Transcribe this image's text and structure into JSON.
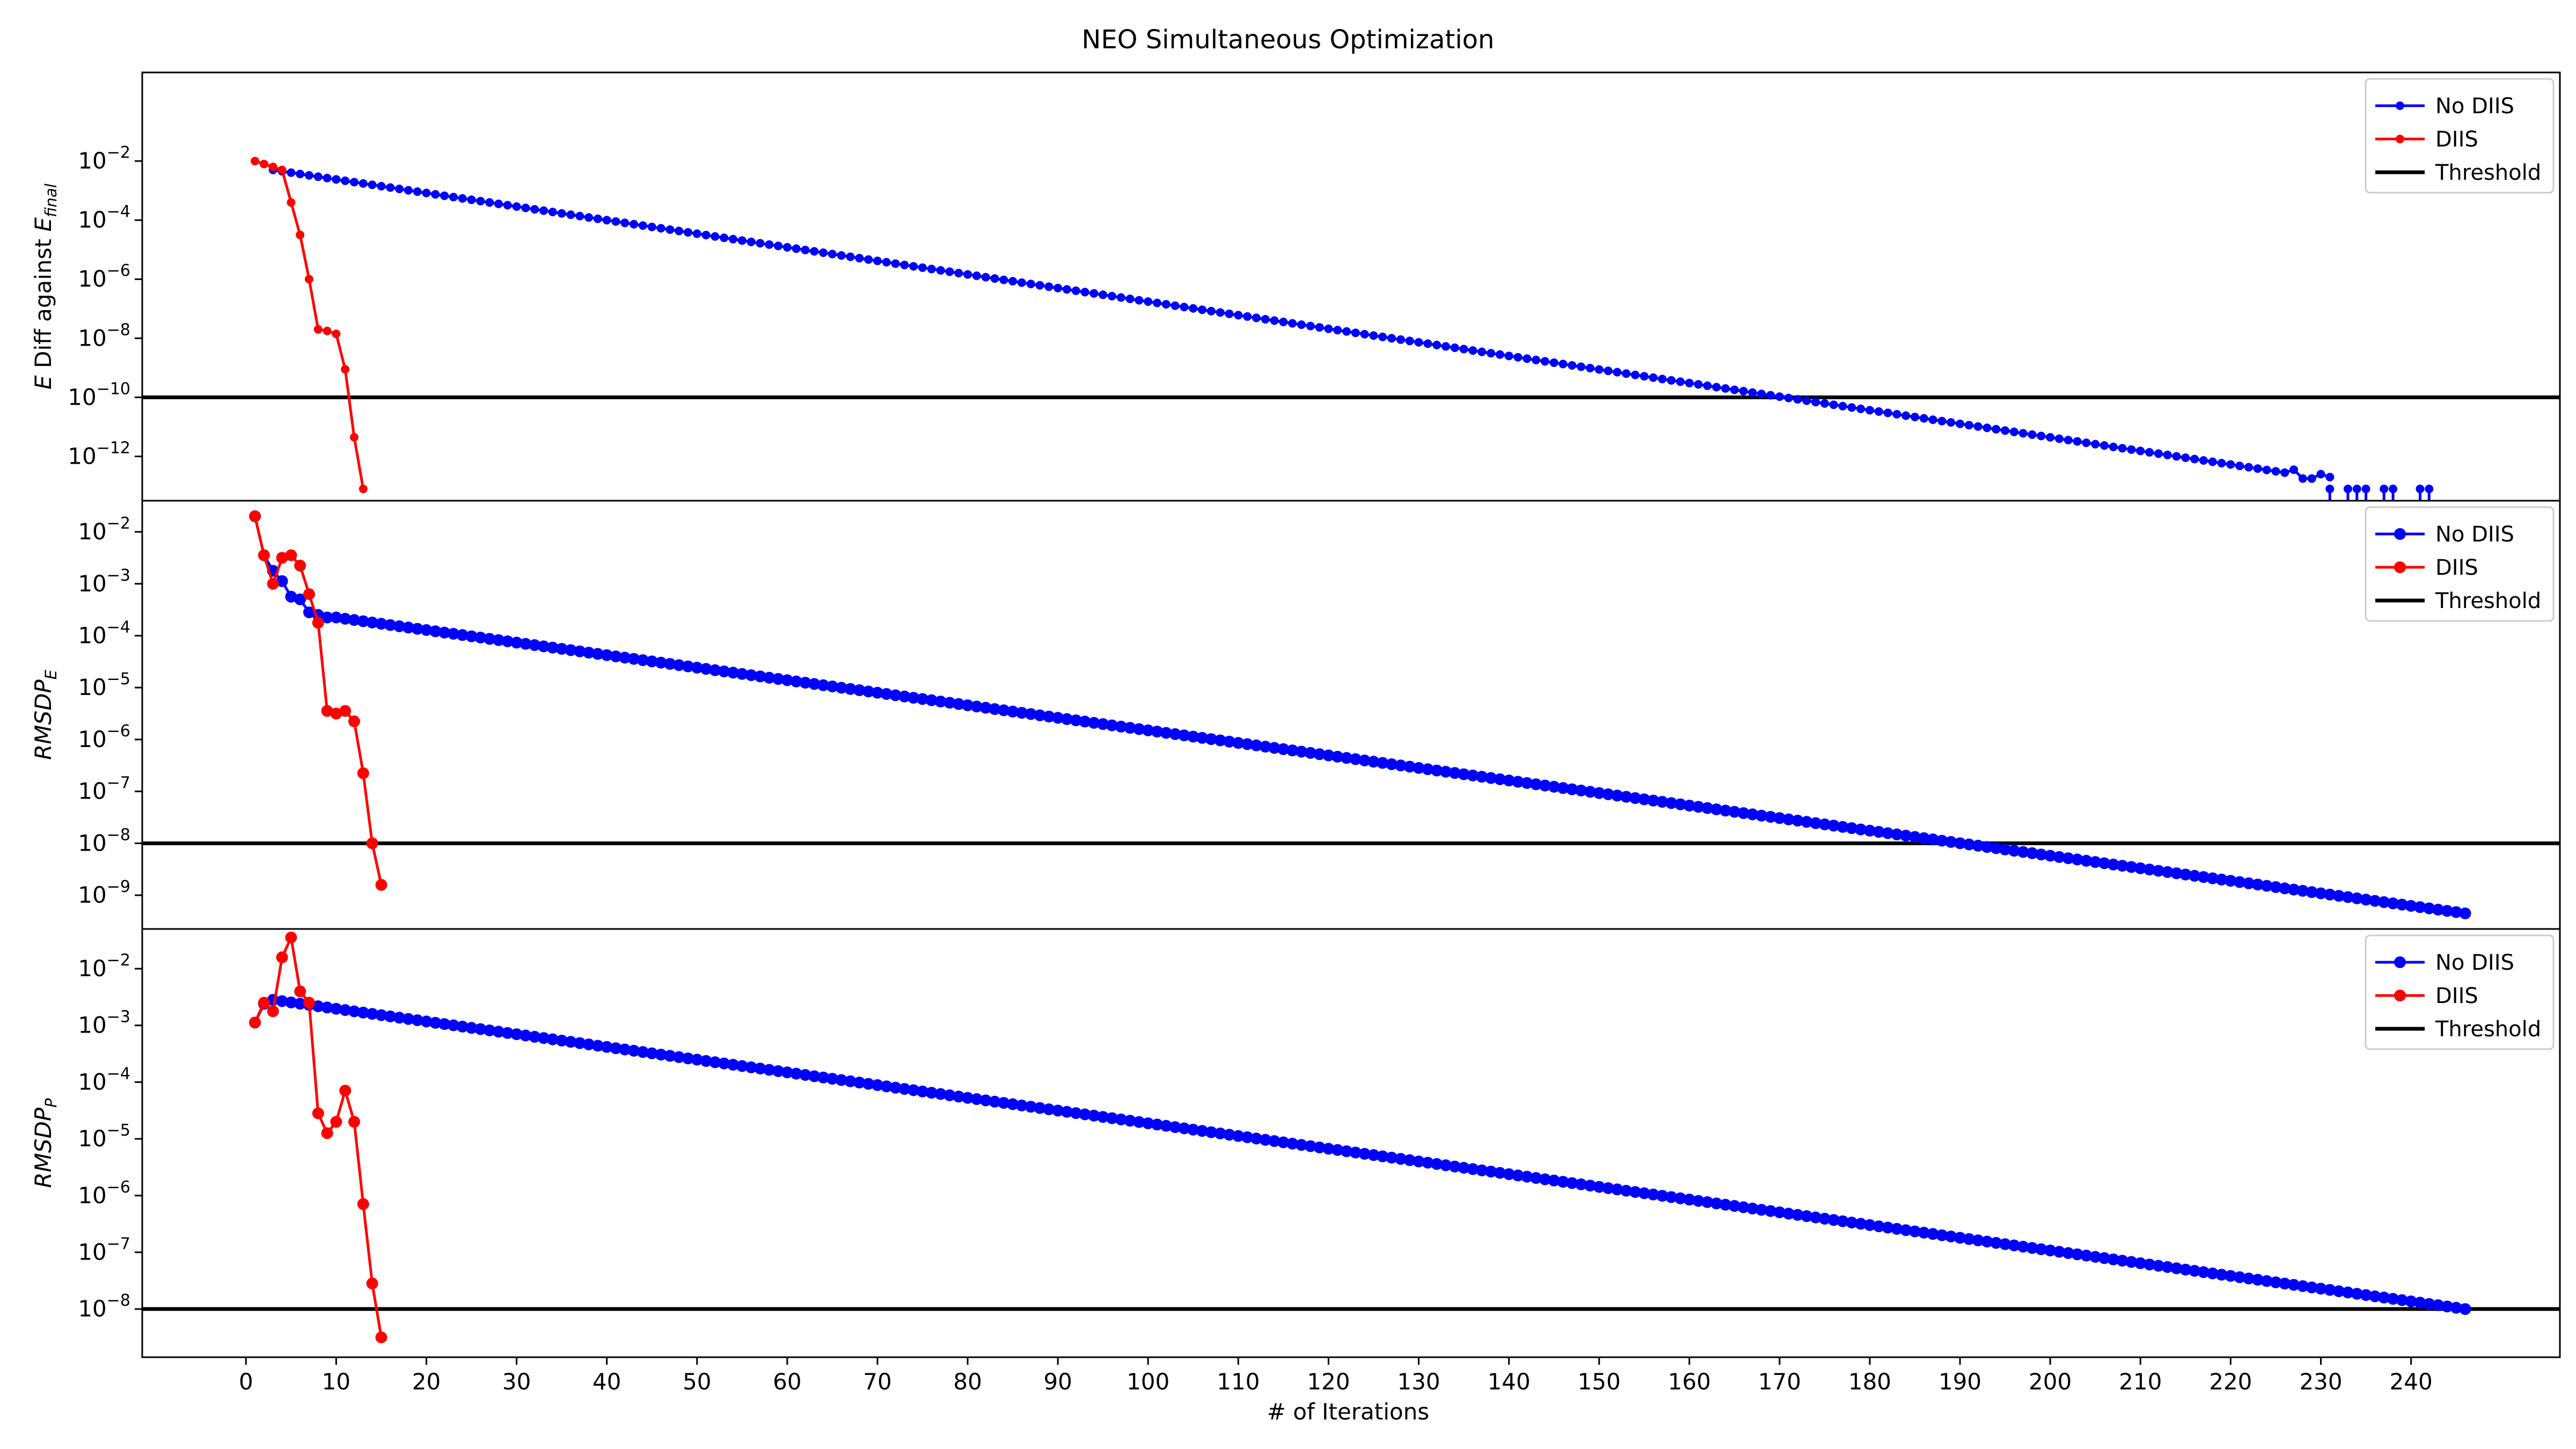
{
  "figure": {
    "title": "NEO Simultaneous Optimization",
    "xlabel": "# of Iterations"
  },
  "x_ticks": [
    0,
    10,
    20,
    30,
    40,
    50,
    60,
    70,
    80,
    90,
    100,
    110,
    120,
    130,
    140,
    150,
    160,
    170,
    180,
    190,
    200,
    210,
    220,
    230,
    240
  ],
  "colors": {
    "no_diis": "#0000ff",
    "diis": "#ff0000",
    "threshold": "#000000"
  },
  "chart_data": [
    {
      "type": "line",
      "yscale": "log",
      "ylabel": {
        "pre": "E",
        "mid": " Diff against ",
        "sym": "E",
        "sub": "final"
      },
      "xlim": [
        -11.5,
        256.5
      ],
      "ylim_log10": [
        -13.5,
        1.0
      ],
      "yticks_exp": [
        -2,
        -4,
        -6,
        -8,
        -10,
        -12
      ],
      "legend": [
        "No DIIS",
        "DIIS",
        "Threshold"
      ],
      "legend_placement": "upper right",
      "threshold": 1e-10,
      "series": [
        {
          "name": "No DIIS",
          "gen": {
            "start": 3,
            "end": 226,
            "a": [
              3,
              -2.3
            ],
            "b": [
              226,
              -12.55
            ]
          },
          "extra": [
            [
              227,
              -12.45
            ],
            [
              228,
              -12.75
            ],
            [
              229,
              -12.75
            ],
            [
              230,
              -12.6
            ],
            [
              231,
              -12.7
            ]
          ],
          "stems": [
            231,
            233,
            234,
            235,
            237,
            238,
            241,
            242
          ]
        },
        {
          "name": "DIIS",
          "x": [
            1,
            2,
            3,
            4,
            5,
            6,
            7,
            8,
            9,
            10,
            11,
            12,
            13
          ],
          "y_log10": [
            -2.0,
            -2.1,
            -2.2,
            -2.3,
            -3.4,
            -4.5,
            -6.0,
            -7.7,
            -7.75,
            -7.85,
            -9.05,
            -11.35,
            -13.1
          ]
        }
      ]
    },
    {
      "type": "line",
      "yscale": "log",
      "ylabel": {
        "sym": "RMSDP",
        "sub": "E"
      },
      "xlim": [
        -11.5,
        256.5
      ],
      "ylim_log10": [
        -9.65,
        -1.4
      ],
      "yticks_exp": [
        -2,
        -3,
        -4,
        -5,
        -6,
        -7,
        -8,
        -9
      ],
      "legend": [
        "No DIIS",
        "DIIS",
        "Threshold"
      ],
      "legend_placement": "upper right",
      "threshold": 1e-08,
      "series": [
        {
          "name": "No DIIS",
          "x": [
            1,
            2,
            3,
            4,
            5,
            6,
            7,
            8,
            9
          ],
          "y_log10": [
            -1.7,
            -2.45,
            -2.75,
            -2.95,
            -3.25,
            -3.3,
            -3.55,
            -3.6,
            -3.65
          ],
          "gen": {
            "start": 10,
            "end": 246,
            "a": [
              10,
              -3.65
            ],
            "b": [
              246,
              -9.35
            ]
          }
        },
        {
          "name": "DIIS",
          "x": [
            1,
            2,
            3,
            4,
            5,
            6,
            7,
            8,
            9,
            10,
            11,
            12,
            13,
            14,
            15
          ],
          "y_log10": [
            -1.7,
            -2.45,
            -3.0,
            -2.5,
            -2.45,
            -2.65,
            -3.2,
            -3.75,
            -5.45,
            -5.5,
            -5.45,
            -5.65,
            -6.65,
            -8.0,
            -8.8
          ]
        }
      ]
    },
    {
      "type": "line",
      "yscale": "log",
      "ylabel": {
        "sym": "RMSDP",
        "sub": "P"
      },
      "xlim": [
        -11.5,
        256.5
      ],
      "ylim_log10": [
        -8.85,
        -1.3
      ],
      "yticks_exp": [
        -2,
        -3,
        -4,
        -5,
        -6,
        -7,
        -8
      ],
      "legend": [
        "No DIIS",
        "DIIS",
        "Threshold"
      ],
      "legend_placement": "upper right",
      "threshold": 1e-08,
      "series": [
        {
          "name": "No DIIS",
          "x": [
            1,
            2
          ],
          "y_log10": [
            -2.95,
            -2.62
          ],
          "gen": {
            "start": 3,
            "end": 246,
            "a": [
              3,
              -2.55
            ],
            "b": [
              246,
              -8.0
            ]
          }
        },
        {
          "name": "DIIS",
          "x": [
            1,
            2,
            3,
            4,
            5,
            6,
            7,
            8,
            9,
            10,
            11,
            12,
            13,
            14,
            15
          ],
          "y_log10": [
            -2.95,
            -2.6,
            -2.75,
            -1.8,
            -1.45,
            -2.4,
            -2.6,
            -4.55,
            -4.9,
            -4.7,
            -4.15,
            -4.7,
            -6.15,
            -7.55,
            -8.5
          ]
        }
      ]
    }
  ]
}
